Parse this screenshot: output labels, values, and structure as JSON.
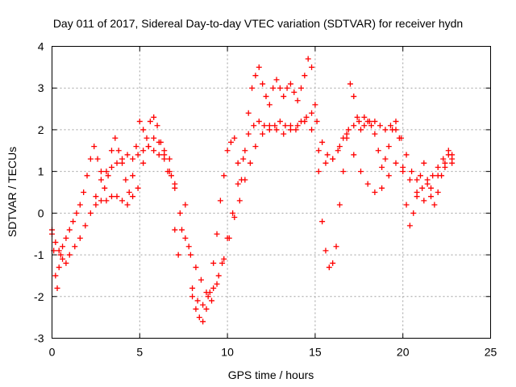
{
  "chart_data": {
    "type": "scatter",
    "title": "Day 011 of 2017, Sidereal Day-to-day VTEC variation (SDTVAR) for receiver hydn",
    "xlabel": "GPS time / hours",
    "ylabel": "SDTVAR / TECUs",
    "xlim": [
      0,
      25
    ],
    "ylim": [
      -3,
      4
    ],
    "xticks": [
      0,
      5,
      10,
      15,
      20,
      25
    ],
    "yticks": [
      -3,
      -2,
      -1,
      0,
      1,
      2,
      3,
      4
    ],
    "grid": true,
    "marker": "+",
    "legend": "none",
    "series": [
      {
        "name": "SDTVAR",
        "color": "#ff0000",
        "description": "Dense per-satellite SDTVAR traces plotted as '+' markers; the points below are read off the plotted tracks.",
        "x": [
          0.0,
          0.1,
          0.2,
          0.3,
          0.4,
          0.5,
          0.6,
          0.8,
          1.0,
          1.2,
          1.4,
          1.6,
          1.8,
          2.0,
          2.2,
          2.4,
          2.6,
          2.8,
          3.0,
          3.2,
          3.4,
          3.6,
          3.8,
          4.0,
          4.2,
          4.4,
          4.6,
          4.8,
          5.0,
          5.2,
          5.4,
          5.6,
          5.8,
          6.0,
          6.2,
          6.4,
          6.6,
          6.8,
          7.0,
          7.2,
          7.4,
          7.6,
          7.8,
          8.0,
          8.2,
          8.4,
          8.6,
          8.8,
          9.0,
          9.2,
          9.4,
          9.6,
          9.8,
          10.0,
          10.2,
          10.4,
          10.6,
          10.8,
          11.0,
          11.2,
          11.4,
          11.6,
          11.8,
          12.0,
          12.2,
          12.4,
          12.6,
          12.8,
          13.0,
          13.2,
          13.4,
          13.6,
          13.8,
          14.0,
          14.2,
          14.4,
          14.6,
          14.8,
          15.0,
          15.2,
          15.4,
          15.6,
          15.8,
          16.0,
          16.2,
          16.4,
          16.6,
          16.8,
          17.0,
          17.2,
          17.4,
          17.6,
          17.8,
          18.0,
          18.2,
          18.4,
          18.6,
          18.8,
          19.0,
          19.2,
          19.4,
          19.6,
          19.8,
          20.0,
          20.2,
          20.4,
          20.6,
          20.8,
          21.0,
          21.2,
          21.4,
          21.6,
          21.8,
          22.0,
          22.2,
          22.4,
          22.6,
          22.8,
          0.0,
          0.2,
          0.4,
          0.6,
          0.8,
          1.0,
          1.3,
          1.6,
          1.9,
          2.2,
          2.5,
          2.8,
          3.1,
          3.4,
          3.7,
          4.0,
          4.3,
          4.6,
          4.9,
          5.2,
          5.5,
          5.8,
          6.1,
          6.4,
          6.7,
          7.0,
          7.3,
          7.6,
          7.9,
          8.2,
          8.5,
          8.8,
          9.1,
          9.4,
          9.7,
          10.0,
          10.3,
          10.6,
          10.9,
          11.2,
          11.5,
          11.8,
          12.1,
          12.4,
          12.7,
          13.0,
          13.3,
          13.6,
          13.9,
          14.2,
          14.5,
          14.8,
          15.1,
          15.4,
          15.7,
          16.0,
          16.3,
          16.6,
          16.9,
          17.2,
          17.5,
          17.8,
          18.1,
          18.4,
          18.7,
          19.0,
          19.3,
          19.6,
          19.9,
          20.2,
          20.5,
          20.8,
          21.1,
          21.4,
          21.7,
          22.0,
          22.3,
          22.6,
          22.8,
          8.0,
          8.3,
          8.6,
          8.9,
          9.2,
          9.5,
          9.8,
          10.1,
          10.4,
          10.7,
          11.0,
          11.3,
          11.6,
          12.0,
          12.4,
          12.8,
          13.2,
          13.6,
          14.0,
          14.4,
          14.8,
          15.2,
          15.6,
          16.0,
          16.4,
          16.8,
          17.2,
          17.6,
          18.0,
          18.4,
          18.8,
          19.2,
          19.6,
          20.0,
          20.4,
          20.8,
          21.2,
          21.6,
          22.0,
          22.4,
          22.8,
          2.5,
          2.8,
          3.1,
          3.4,
          3.7,
          4.0,
          4.3,
          4.6,
          4.9,
          5.2,
          5.5,
          5.8,
          6.1,
          6.4,
          6.7,
          7.0
        ],
        "y": [
          -0.5,
          -0.9,
          -1.5,
          -1.8,
          -1.3,
          -1.0,
          -0.8,
          -0.6,
          -0.4,
          -0.2,
          0.0,
          0.2,
          0.5,
          0.9,
          1.3,
          1.6,
          1.3,
          1.0,
          0.6,
          0.9,
          1.5,
          1.8,
          1.5,
          1.2,
          0.8,
          0.5,
          0.9,
          1.6,
          2.2,
          2.0,
          1.8,
          2.2,
          2.3,
          2.1,
          1.7,
          1.3,
          1.0,
          0.9,
          -0.4,
          -1.0,
          -0.4,
          0.2,
          -0.8,
          -1.8,
          -2.3,
          -2.5,
          -2.6,
          -2.3,
          -1.9,
          -1.2,
          -0.5,
          0.3,
          0.9,
          1.5,
          1.7,
          1.8,
          1.2,
          0.8,
          1.5,
          2.4,
          3.0,
          3.3,
          3.5,
          3.1,
          2.8,
          2.6,
          3.0,
          3.2,
          3.0,
          2.8,
          3.0,
          3.1,
          2.9,
          2.7,
          3.0,
          3.3,
          3.7,
          3.5,
          2.6,
          1.0,
          -0.2,
          -0.9,
          -1.3,
          -1.2,
          -0.8,
          0.2,
          1.0,
          1.9,
          3.1,
          2.8,
          2.3,
          2.0,
          2.3,
          2.2,
          2.1,
          1.9,
          1.5,
          1.1,
          1.3,
          1.6,
          2.0,
          2.2,
          1.8,
          1.0,
          0.2,
          -0.3,
          0.0,
          0.5,
          0.9,
          1.2,
          0.8,
          0.4,
          0.2,
          0.5,
          0.9,
          1.2,
          1.4,
          1.3,
          -0.4,
          -0.7,
          -0.9,
          -1.1,
          -1.2,
          -1.0,
          -0.8,
          -0.6,
          -0.3,
          0.0,
          0.4,
          0.8,
          1.0,
          1.1,
          1.2,
          1.3,
          1.4,
          1.3,
          1.4,
          1.5,
          1.6,
          1.5,
          1.4,
          1.5,
          1.3,
          0.6,
          0.0,
          -0.6,
          -1.0,
          -1.3,
          -1.6,
          -1.9,
          -2.1,
          -1.7,
          -1.2,
          -0.6,
          0.0,
          0.7,
          1.3,
          1.9,
          2.1,
          2.2,
          2.1,
          2.0,
          2.1,
          2.2,
          2.1,
          2.1,
          2.0,
          2.2,
          2.3,
          2.4,
          2.2,
          1.7,
          1.4,
          1.3,
          1.5,
          1.8,
          2.0,
          2.1,
          2.2,
          2.1,
          2.2,
          2.2,
          2.1,
          2.0,
          2.1,
          2.0,
          1.8,
          1.4,
          1.0,
          0.8,
          0.6,
          0.7,
          0.9,
          1.1,
          1.3,
          1.5,
          1.4,
          -2.0,
          -2.1,
          -2.2,
          -2.0,
          -1.8,
          -1.5,
          -1.1,
          -0.6,
          -0.1,
          0.3,
          0.8,
          1.2,
          1.6,
          1.9,
          2.1,
          2.0,
          1.9,
          2.0,
          2.1,
          2.2,
          2.0,
          1.5,
          1.2,
          1.3,
          1.6,
          1.8,
          1.4,
          1.0,
          0.7,
          0.5,
          0.6,
          0.9,
          1.2,
          1.1,
          0.8,
          0.4,
          0.3,
          0.6,
          0.9,
          1.1,
          1.2,
          0.2,
          0.3,
          0.3,
          0.4,
          0.4,
          0.3,
          0.2,
          0.4,
          0.6,
          1.2,
          1.6,
          1.8,
          1.7,
          1.4,
          1.0,
          0.7
        ]
      }
    ]
  }
}
